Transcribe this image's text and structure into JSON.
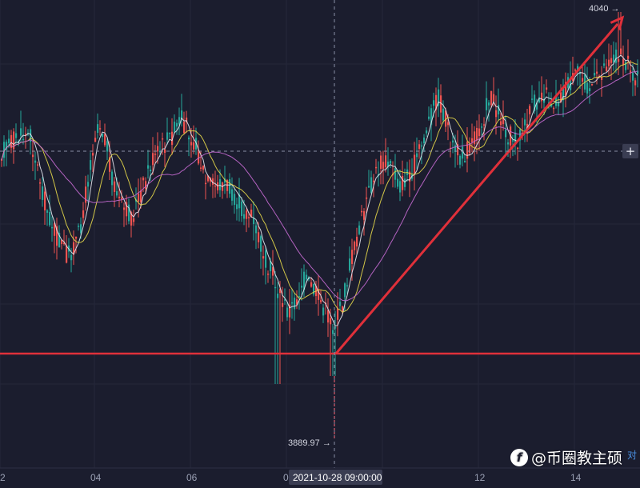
{
  "chart_data": {
    "type": "candlestick",
    "x_ticks": [
      "2",
      "04",
      "06",
      "0",
      "12",
      "14"
    ],
    "crosshair_x_label": "2021-10-28 09:00:00",
    "ylim": [
      3850,
      4050
    ],
    "horizontal_support_level": 3889.97,
    "high_annotation": "4040 →",
    "low_annotation": "3889.97 →",
    "moving_average_colors": [
      "#e6e8f0",
      "#e6d84a",
      "#c46ad0"
    ],
    "candle_up_color": "#26a69a",
    "candle_down_color": "#ef5350",
    "trend_color": "#e0303a",
    "crosshair_price": 3975
  },
  "ui": {
    "plus_button": "+",
    "corner_label": "对",
    "watermark_icon": "f",
    "watermark_text": "@币圈教主硕"
  }
}
